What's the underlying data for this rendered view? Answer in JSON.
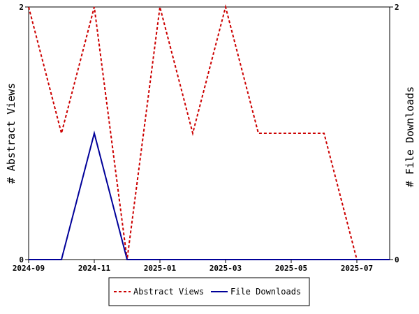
{
  "chart_data": {
    "type": "line",
    "x": [
      "2024-09",
      "2024-10",
      "2024-11",
      "2024-12",
      "2025-01",
      "2025-02",
      "2025-03",
      "2025-04",
      "2025-05",
      "2025-06",
      "2025-07",
      "2025-08"
    ],
    "x_ticks": [
      "2024-09",
      "2024-11",
      "2025-01",
      "2025-03",
      "2025-05",
      "2025-07"
    ],
    "series": [
      {
        "name": "Abstract Views",
        "axis": "left",
        "color": "#cc0000",
        "style": "dashed",
        "values": [
          2,
          1,
          2,
          0,
          2,
          1,
          2,
          1,
          1,
          1,
          0,
          0
        ]
      },
      {
        "name": "File Downloads",
        "axis": "right",
        "color": "#000099",
        "style": "solid",
        "values": [
          0,
          0,
          1,
          0,
          0,
          0,
          0,
          0,
          0,
          0,
          0,
          0
        ]
      }
    ],
    "ylabel_left": "# Abstract Views",
    "ylabel_right": "# File Downloads",
    "ylim_left": [
      0,
      2
    ],
    "ylim_right": [
      0,
      2
    ],
    "yticks_left": [
      "0",
      "2"
    ],
    "yticks_right": [
      "0",
      "2"
    ],
    "legend_placement": "bottom-center",
    "grid": false
  }
}
